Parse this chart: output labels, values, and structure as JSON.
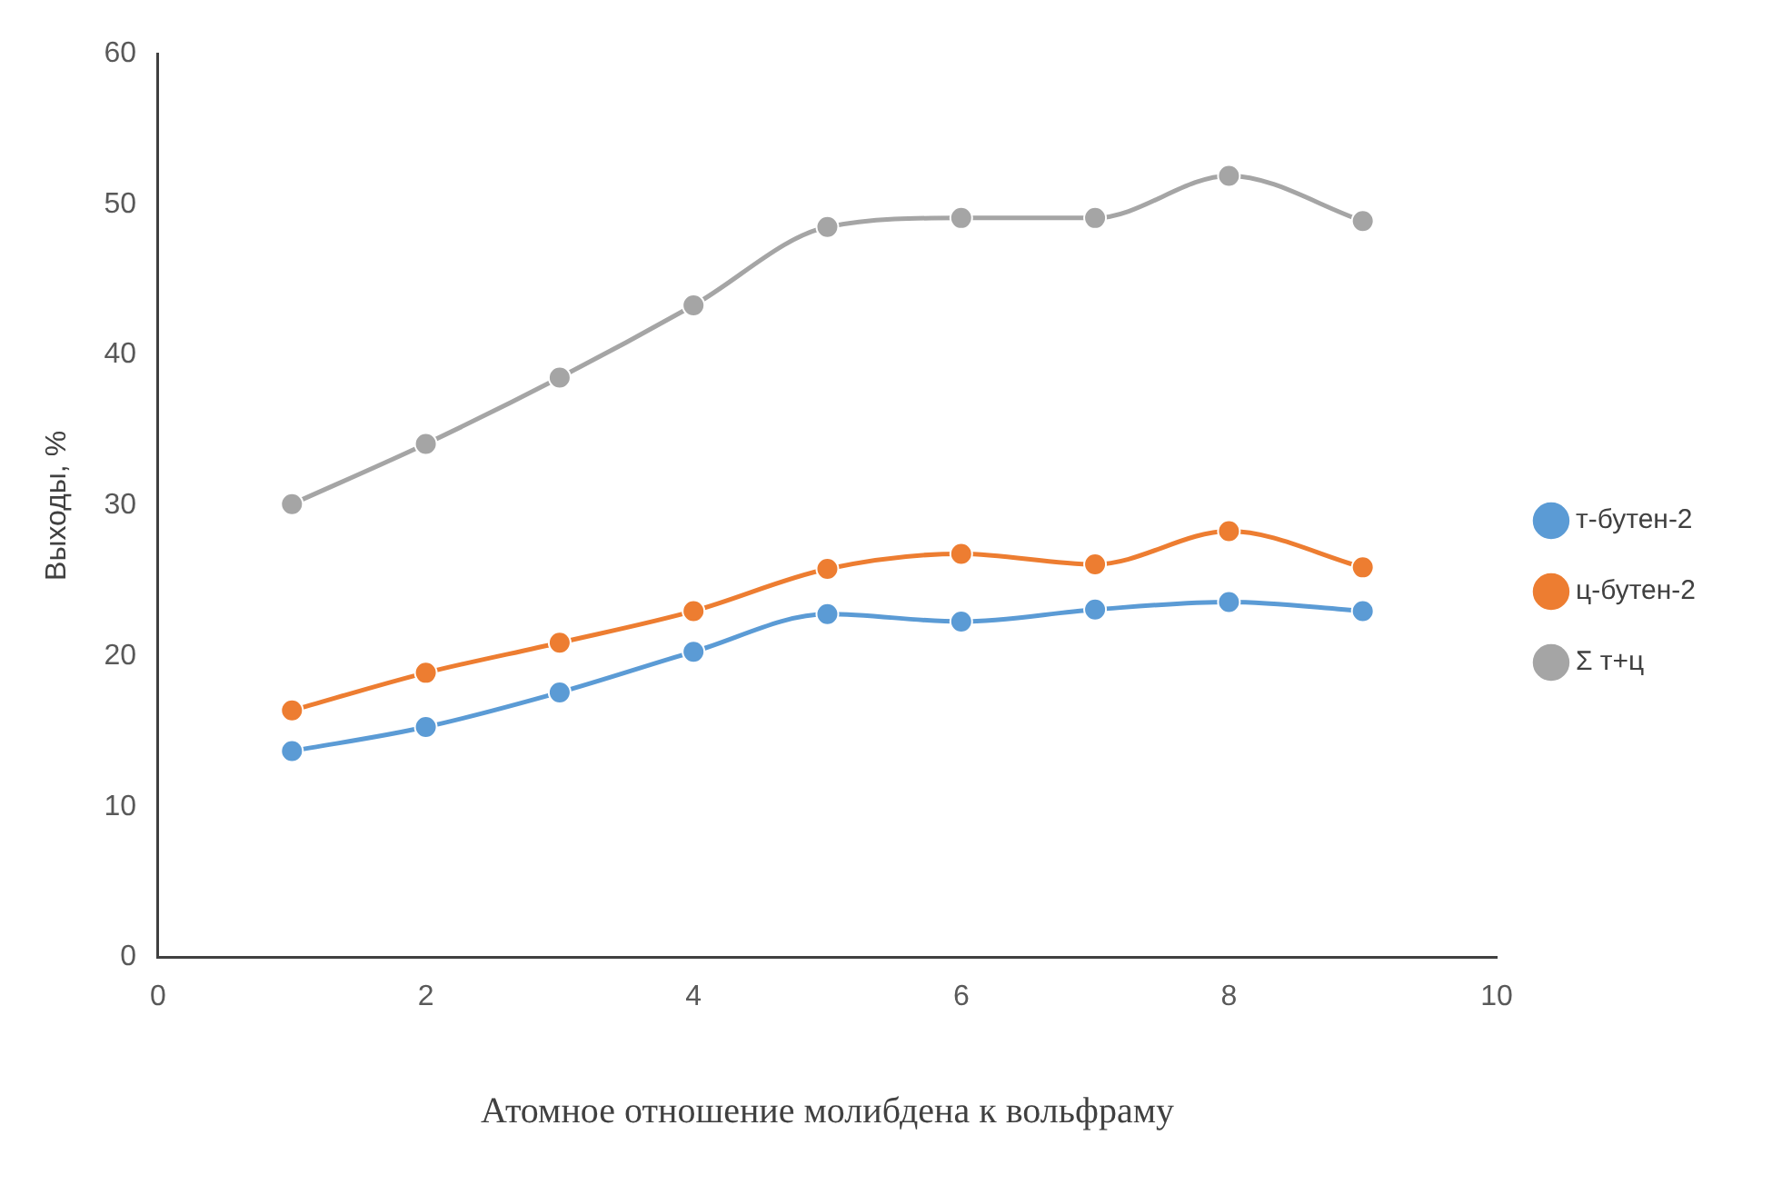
{
  "chart_data": {
    "type": "line",
    "xlabel": "Атомное отношение молибдена к вольфраму",
    "ylabel": "Выходы, %",
    "x": [
      1,
      2,
      3,
      4,
      5,
      6,
      7,
      8,
      9
    ],
    "series": [
      {
        "name": "т-бутен-2",
        "color": "#5b9bd5",
        "values": [
          13.7,
          15.3,
          17.6,
          20.3,
          22.8,
          22.3,
          23.1,
          23.6,
          23.0
        ]
      },
      {
        "name": "ц-бутен-2",
        "color": "#ed7d31",
        "values": [
          16.4,
          18.9,
          20.9,
          23.0,
          25.8,
          26.8,
          26.1,
          28.3,
          25.9
        ]
      },
      {
        "name": "Σ т+ц",
        "color": "#a5a5a5",
        "values": [
          30.1,
          34.1,
          38.5,
          43.3,
          48.5,
          49.1,
          49.1,
          51.9,
          48.9
        ]
      }
    ],
    "xlim": [
      0,
      10
    ],
    "xticks": [
      0,
      2,
      4,
      6,
      8,
      10
    ],
    "ylim": [
      0,
      60
    ],
    "yticks": [
      0,
      10,
      20,
      30,
      40,
      50,
      60
    ],
    "grid": false,
    "legend": "right",
    "marker": "circle",
    "line_style": "solid"
  }
}
